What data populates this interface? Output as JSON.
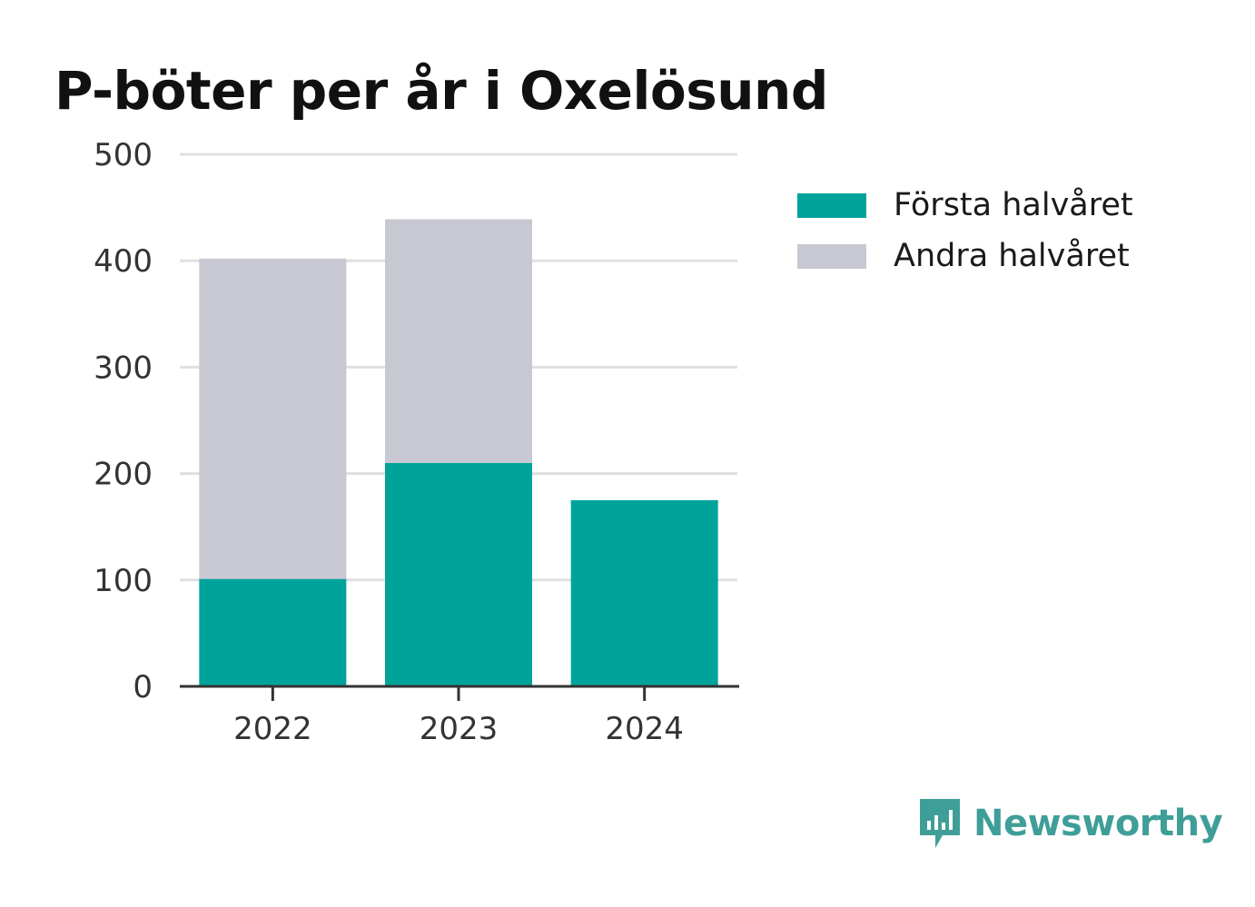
{
  "chart_data": {
    "type": "bar",
    "stacked": true,
    "title": "P-böter per år i Oxelösund",
    "categories": [
      "2022",
      "2023",
      "2024"
    ],
    "series": [
      {
        "name": "Första halvåret",
        "values": [
          101,
          210,
          175
        ],
        "color": "#00a39a"
      },
      {
        "name": "Andra halvåret",
        "values": [
          301,
          229,
          null
        ],
        "color": "#c8c8d2"
      }
    ],
    "ylim": [
      0,
      500
    ],
    "yticks": [
      0,
      100,
      200,
      300,
      400,
      500
    ],
    "grid": true,
    "legend_position": "right"
  },
  "brand": {
    "name": "Newsworthy",
    "icon": "newsworthy-logo-icon",
    "color": "#3f9e98"
  },
  "colors": {
    "axis": "#333333",
    "grid": "#e0e0e0",
    "text": "#333333",
    "title": "#111111"
  }
}
